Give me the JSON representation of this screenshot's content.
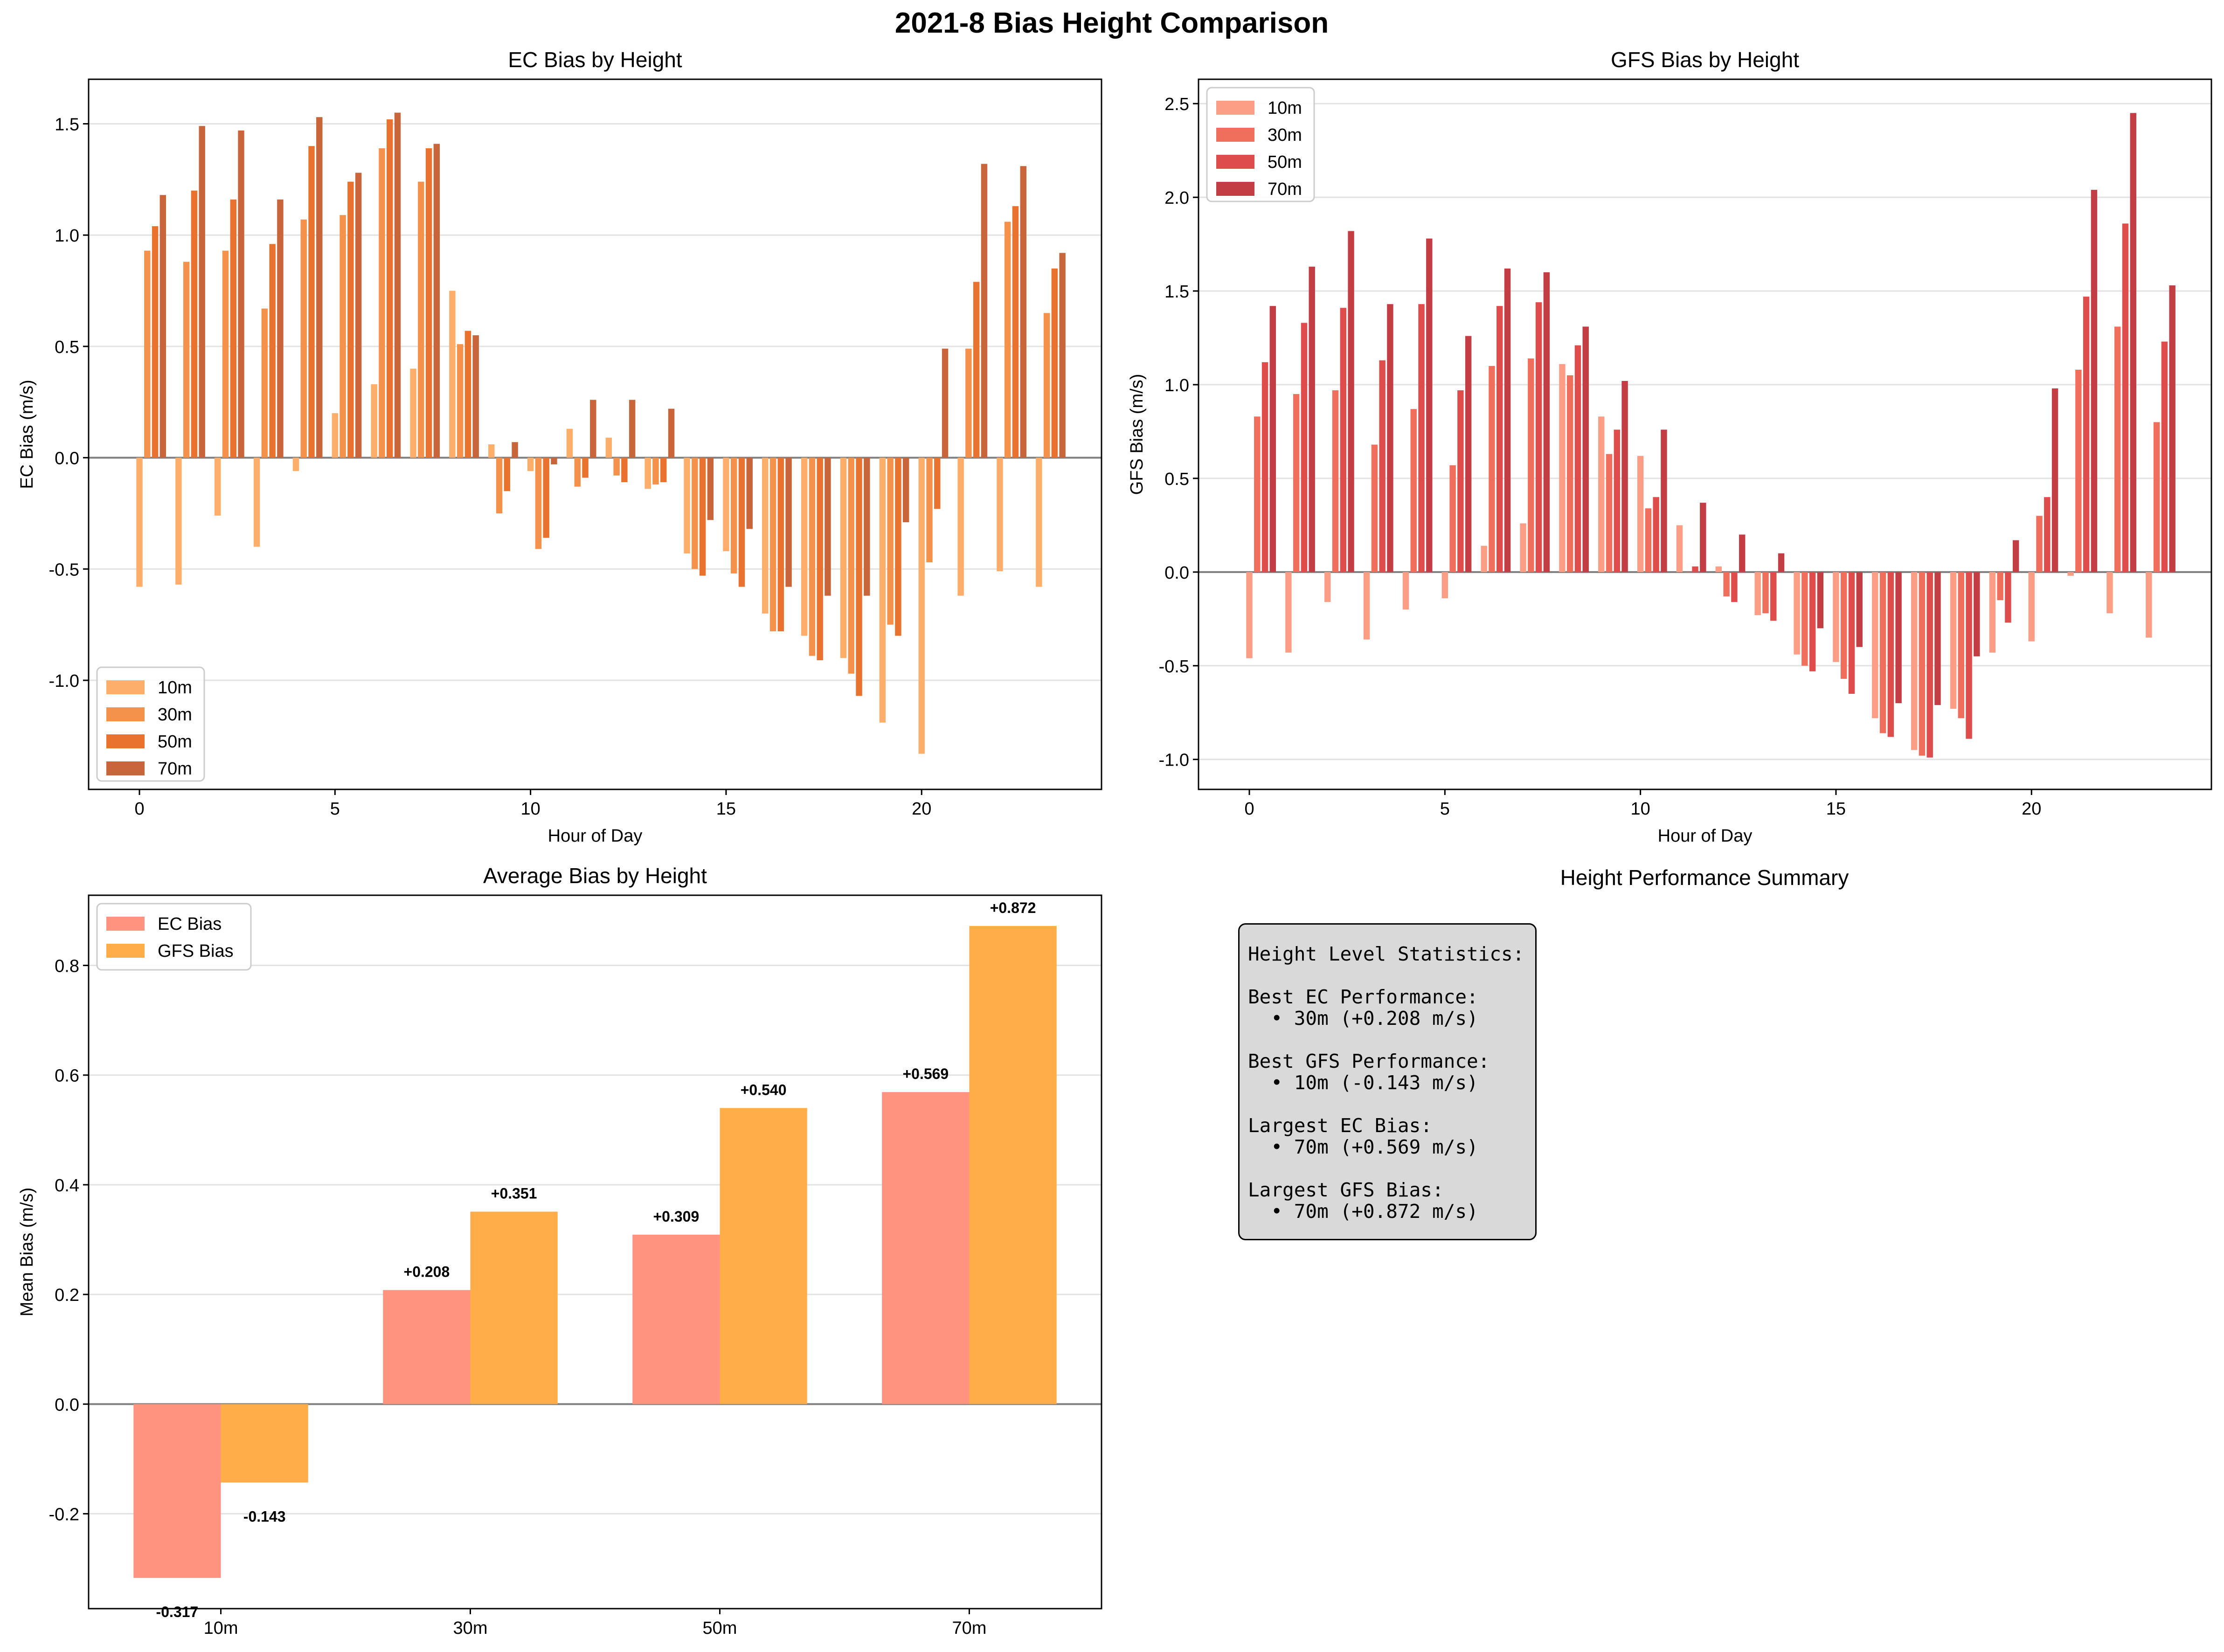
{
  "suptitle": "2021-8 Bias Height Comparison",
  "colors": {
    "ec": [
      "#fdae6b",
      "#f4914a",
      "#e8722e",
      "#c8653a"
    ],
    "gfs": [
      "#fc9e86",
      "#f06e5c",
      "#de4c4b",
      "#c33e44"
    ],
    "avg_ec": "#ff9380",
    "avg_gfs": "#ffad48"
  },
  "chart_data": [
    {
      "type": "bar",
      "title": "EC Bias by Height",
      "xlabel": "Hour of Day",
      "ylabel": "EC Bias (m/s)",
      "x": [
        0,
        1,
        2,
        3,
        4,
        5,
        6,
        7,
        8,
        9,
        10,
        11,
        12,
        13,
        14,
        15,
        16,
        17,
        18,
        19,
        20,
        21,
        22,
        23
      ],
      "xlim": [
        -1.3,
        24.6
      ],
      "ylim": [
        -1.49,
        1.7
      ],
      "yticks": [
        -1.0,
        -0.5,
        0.0,
        0.5,
        1.0,
        1.5
      ],
      "yticklabels": [
        "-1.0",
        "-0.5",
        "0.0",
        "0.5",
        "1.0",
        "1.5"
      ],
      "xticks": [
        0,
        5,
        10,
        15,
        20
      ],
      "xticklabels": [
        "0",
        "5",
        "10",
        "15",
        "20"
      ],
      "legend_position": "lower-left",
      "series": [
        {
          "name": "10m",
          "values": [
            -0.58,
            -0.57,
            -0.26,
            -0.4,
            -0.06,
            0.2,
            0.33,
            0.4,
            0.75,
            0.06,
            -0.06,
            0.13,
            0.09,
            -0.14,
            -0.43,
            -0.42,
            -0.7,
            -0.8,
            -0.9,
            -1.19,
            -1.33,
            -0.62,
            -0.51,
            -0.58
          ]
        },
        {
          "name": "30m",
          "values": [
            0.93,
            0.88,
            0.93,
            0.67,
            1.07,
            1.09,
            1.39,
            1.24,
            0.51,
            -0.25,
            -0.41,
            -0.13,
            -0.08,
            -0.12,
            -0.5,
            -0.52,
            -0.78,
            -0.89,
            -0.97,
            -0.75,
            -0.47,
            0.49,
            1.06,
            0.65
          ]
        },
        {
          "name": "50m",
          "values": [
            1.04,
            1.2,
            1.16,
            0.96,
            1.4,
            1.24,
            1.52,
            1.39,
            0.57,
            -0.15,
            -0.36,
            -0.09,
            -0.11,
            -0.11,
            -0.53,
            -0.58,
            -0.78,
            -0.91,
            -1.07,
            -0.8,
            -0.23,
            0.79,
            1.13,
            0.85
          ]
        },
        {
          "name": "70m",
          "values": [
            1.18,
            1.49,
            1.47,
            1.16,
            1.53,
            1.28,
            1.55,
            1.41,
            0.55,
            0.07,
            -0.03,
            0.26,
            0.26,
            0.22,
            -0.28,
            -0.32,
            -0.58,
            -0.62,
            -0.62,
            -0.29,
            0.49,
            1.32,
            1.31,
            0.92
          ]
        }
      ]
    },
    {
      "type": "bar",
      "title": "GFS Bias by Height",
      "xlabel": "Hour of Day",
      "ylabel": "GFS Bias (m/s)",
      "x": [
        0,
        1,
        2,
        3,
        4,
        5,
        6,
        7,
        8,
        9,
        10,
        11,
        12,
        13,
        14,
        15,
        16,
        17,
        18,
        19,
        20,
        21,
        22,
        23
      ],
      "xlim": [
        -1.3,
        24.6
      ],
      "ylim": [
        -1.16,
        2.63
      ],
      "yticks": [
        -1.0,
        -0.5,
        0.0,
        0.5,
        1.0,
        1.5,
        2.0,
        2.5
      ],
      "yticklabels": [
        "-1.0",
        "-0.5",
        "0.0",
        "0.5",
        "1.0",
        "1.5",
        "2.0",
        "2.5"
      ],
      "xticks": [
        0,
        5,
        10,
        15,
        20
      ],
      "xticklabels": [
        "0",
        "5",
        "10",
        "15",
        "20"
      ],
      "legend_position": "upper-left",
      "series": [
        {
          "name": "10m",
          "values": [
            -0.46,
            -0.43,
            -0.16,
            -0.36,
            -0.2,
            -0.14,
            0.14,
            0.26,
            1.11,
            0.83,
            0.62,
            0.25,
            0.03,
            -0.23,
            -0.44,
            -0.48,
            -0.78,
            -0.95,
            -0.73,
            -0.43,
            -0.37,
            -0.02,
            -0.22,
            -0.35
          ]
        },
        {
          "name": "30m",
          "values": [
            0.83,
            0.95,
            0.97,
            0.68,
            0.87,
            0.57,
            1.1,
            1.14,
            1.05,
            0.63,
            0.34,
            0.0,
            -0.13,
            -0.22,
            -0.5,
            -0.57,
            -0.86,
            -0.98,
            -0.78,
            -0.15,
            0.3,
            1.08,
            1.31,
            0.8
          ]
        },
        {
          "name": "50m",
          "values": [
            1.12,
            1.33,
            1.41,
            1.13,
            1.43,
            0.97,
            1.42,
            1.44,
            1.21,
            0.76,
            0.4,
            0.03,
            -0.16,
            -0.26,
            -0.53,
            -0.65,
            -0.88,
            -0.99,
            -0.89,
            -0.27,
            0.4,
            1.47,
            1.86,
            1.23
          ]
        },
        {
          "name": "70m",
          "values": [
            1.42,
            1.63,
            1.82,
            1.43,
            1.78,
            1.26,
            1.62,
            1.6,
            1.31,
            1.02,
            0.76,
            0.37,
            0.2,
            0.1,
            -0.3,
            -0.4,
            -0.7,
            -0.71,
            -0.45,
            0.17,
            0.98,
            2.04,
            2.45,
            1.53
          ]
        }
      ]
    },
    {
      "type": "bar",
      "title": "Average Bias by Height",
      "xlabel": "",
      "ylabel": "Mean Bias (m/s)",
      "categories": [
        "10m",
        "30m",
        "50m",
        "70m"
      ],
      "xlim": [
        -0.53,
        3.53
      ],
      "ylim": [
        -0.373,
        0.928
      ],
      "yticks": [
        -0.2,
        0.0,
        0.2,
        0.4,
        0.6,
        0.8
      ],
      "yticklabels": [
        "-0.2",
        "0.0",
        "0.2",
        "0.4",
        "0.6",
        "0.8"
      ],
      "legend_position": "upper-left",
      "series": [
        {
          "name": "EC Bias",
          "values": [
            -0.317,
            0.208,
            0.309,
            0.569
          ],
          "labels": [
            "-0.317",
            "+0.208",
            "+0.309",
            "+0.569"
          ]
        },
        {
          "name": "GFS Bias",
          "values": [
            -0.143,
            0.351,
            0.54,
            0.872
          ],
          "labels": [
            "-0.143",
            "+0.351",
            "+0.540",
            "+0.872"
          ]
        }
      ]
    }
  ],
  "summary": {
    "title": "Height Performance Summary",
    "lines": [
      "Height Level Statistics:",
      "",
      "Best EC Performance:",
      "  • 30m (+0.208 m/s)",
      "",
      "Best GFS Performance:",
      "  • 10m (-0.143 m/s)",
      "",
      "Largest EC Bias:",
      "  • 70m (+0.569 m/s)",
      "",
      "Largest GFS Bias:",
      "  • 70m (+0.872 m/s)"
    ]
  }
}
